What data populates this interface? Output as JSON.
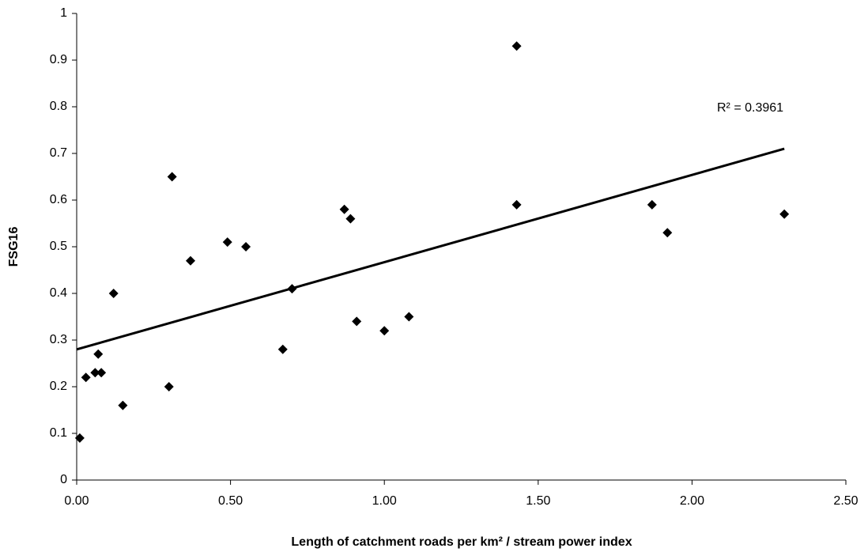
{
  "chart_data": {
    "type": "scatter",
    "x_label": "Length of catchment roads per km² / stream power index",
    "y_label": "FSG16",
    "series": [
      {
        "color": "#000000",
        "x": [
          0.01,
          0.03,
          0.06,
          0.08,
          0.07,
          0.12,
          0.15,
          0.3,
          0.31,
          0.37,
          0.49,
          0.55,
          0.67,
          0.7,
          0.87,
          0.89,
          0.91,
          1.0,
          1.08,
          1.43,
          1.43,
          1.87,
          1.92,
          2.3
        ],
        "values": [
          0.09,
          0.22,
          0.23,
          0.23,
          0.27,
          0.4,
          0.16,
          0.2,
          0.65,
          0.47,
          0.51,
          0.5,
          0.28,
          0.41,
          0.58,
          0.56,
          0.34,
          0.32,
          0.35,
          0.93,
          0.59,
          0.59,
          0.53,
          0.57
        ]
      }
    ],
    "trendline": {
      "x": [
        0,
        2.3
      ],
      "values": [
        0.28,
        0.71
      ],
      "label": "R² = 0.3961",
      "color": "#000000"
    },
    "xlim": [
      0,
      2.5
    ],
    "xticks": [
      {
        "value": 0,
        "label": "0.00"
      },
      {
        "value": 0.5,
        "label": "0.50"
      },
      {
        "value": 1,
        "label": "1.00"
      },
      {
        "value": 1.5,
        "label": "1.50"
      },
      {
        "value": 2,
        "label": "2.00"
      },
      {
        "value": 2.5,
        "label": "2.50"
      }
    ],
    "ylim": [
      0,
      1
    ],
    "yticks": [
      0,
      0.1,
      0.2,
      0.3,
      0.4,
      0.5,
      0.6,
      0.7,
      0.8,
      0.9,
      1
    ],
    "grid": false
  }
}
